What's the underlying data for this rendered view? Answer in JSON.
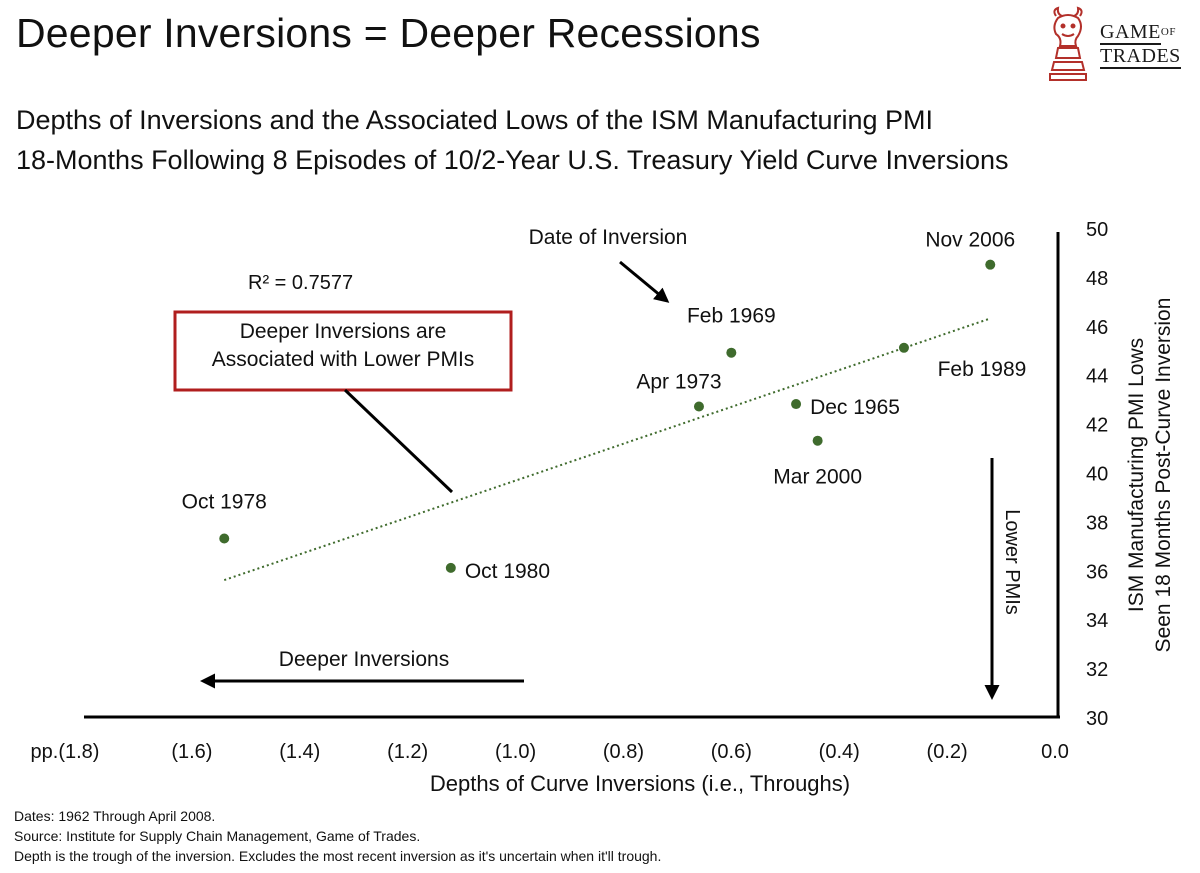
{
  "title": "Deeper Inversions = Deeper Recessions",
  "subtitle_lines": [
    "Depths of Inversions and the Associated Lows of the ISM Manufacturing PMI",
    "18-Months Following 8 Episodes of 10/2-Year U.S. Treasury Yield Curve Inversions"
  ],
  "logo": {
    "line1": "GAME",
    "of": "OF",
    "line2": "TRADES",
    "icon": "bull-chess-knight-icon",
    "color": "#b3302a"
  },
  "chart_data": {
    "type": "scatter",
    "title": "",
    "xlabel": "Depths of Curve Inversions (i.e., Throughs)",
    "ylabel_lines": [
      "ISM Manufacturing PMI Lows",
      "Seen 18 Months Post-Curve Inversion"
    ],
    "xlim": [
      -1.8,
      0.0
    ],
    "ylim": [
      30,
      50
    ],
    "x_ticks": [
      {
        "value": -1.8,
        "label": "pp.(1.8)"
      },
      {
        "value": -1.6,
        "label": "(1.6)"
      },
      {
        "value": -1.4,
        "label": "(1.4)"
      },
      {
        "value": -1.2,
        "label": "(1.2)"
      },
      {
        "value": -1.0,
        "label": "(1.0)"
      },
      {
        "value": -0.8,
        "label": "(0.8)"
      },
      {
        "value": -0.6,
        "label": "(0.6)"
      },
      {
        "value": -0.4,
        "label": "(0.4)"
      },
      {
        "value": -0.2,
        "label": "(0.2)"
      },
      {
        "value": 0.0,
        "label": "0.0"
      }
    ],
    "y_ticks": [
      30,
      32,
      34,
      36,
      38,
      40,
      42,
      44,
      46,
      48,
      50
    ],
    "point_color": "#3f6b2d",
    "points": [
      {
        "label": "Oct 1978",
        "x": -1.54,
        "y": 37.3,
        "label_pos": "above"
      },
      {
        "label": "Oct 1980",
        "x": -1.12,
        "y": 36.1,
        "label_pos": "right"
      },
      {
        "label": "Apr 1973",
        "x": -0.66,
        "y": 42.7,
        "label_pos": "above-left"
      },
      {
        "label": "Feb 1969",
        "x": -0.6,
        "y": 44.9,
        "label_pos": "above"
      },
      {
        "label": "Dec 1965",
        "x": -0.48,
        "y": 42.8,
        "label_pos": "right"
      },
      {
        "label": "Mar 2000",
        "x": -0.44,
        "y": 41.3,
        "label_pos": "below"
      },
      {
        "label": "Feb 1989",
        "x": -0.28,
        "y": 45.1,
        "label_pos": "below-right"
      },
      {
        "label": "Nov 2006",
        "x": -0.12,
        "y": 48.5,
        "label_pos": "above-left"
      }
    ],
    "trendline": {
      "x": [
        -1.54,
        -0.12
      ],
      "y": [
        35.6,
        46.3
      ],
      "r2_label": "R² = 0.7577",
      "color": "#3f6b2d",
      "style": "dotted"
    },
    "annotations": {
      "box_lines": [
        "Deeper Inversions are",
        "Associated with Lower PMIs"
      ],
      "box_color": "#b01e1e",
      "date_of_inversion": "Date of Inversion",
      "deeper_inversions": "Deeper Inversions",
      "lower_pmis": "Lower PMIs"
    },
    "grid": false,
    "legend": "none"
  },
  "footer": [
    "Dates: 1962 Through April 2008.",
    "Source: Institute for Supply Chain Management, Game of Trades.",
    "Depth is the trough of the inversion. Excludes the most recent inversion as it's uncertain when it'll trough."
  ]
}
